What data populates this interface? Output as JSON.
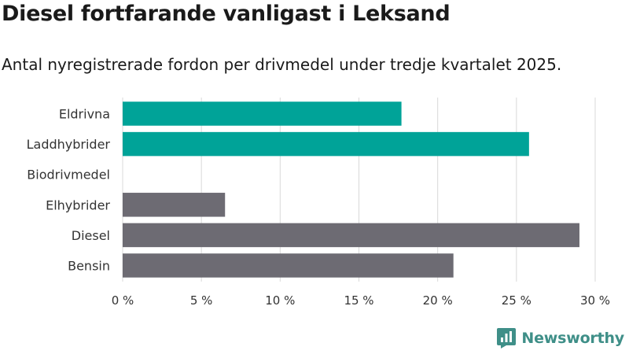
{
  "colors": {
    "electric": "#00a398",
    "fossil": "#6d6b73",
    "grid": "#d9d9d9",
    "brand": "#3f8f88"
  },
  "brand": {
    "name": "Newsworthy",
    "icon": "newsworthy-logo-icon"
  },
  "chart_data": {
    "type": "bar",
    "orientation": "horizontal",
    "title": "Diesel fortfarande vanligast i Leksand",
    "subtitle": "Antal nyregistrerade fordon per drivmedel under tredje kvartalet 2025.",
    "xlabel": "",
    "ylabel": "",
    "xlim": [
      0,
      30
    ],
    "grid": true,
    "categories": [
      "Eldrivna",
      "Laddhybrider",
      "Biodrivmedel",
      "Elhybrider",
      "Diesel",
      "Bensin"
    ],
    "values": [
      17.7,
      25.8,
      0,
      6.5,
      29.0,
      21.0
    ],
    "groups": [
      "electric",
      "electric",
      "electric",
      "fossil",
      "fossil",
      "fossil"
    ],
    "x_ticks": [
      0,
      5,
      10,
      15,
      20,
      25,
      30
    ],
    "x_tick_labels": [
      "0 %",
      "5 %",
      "10 %",
      "15 %",
      "20 %",
      "25 %",
      "30 %"
    ]
  }
}
